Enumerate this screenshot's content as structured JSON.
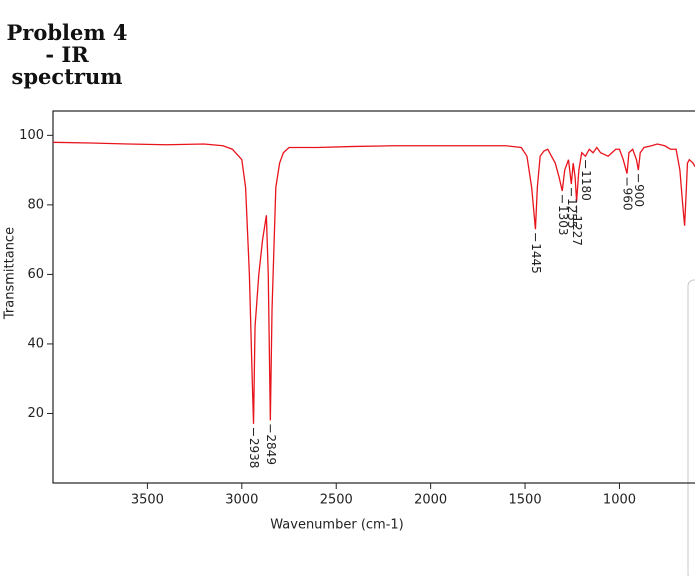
{
  "chart_data": {
    "type": "line",
    "title": "Problem 4 - IR spectrum",
    "xlabel": "Wavenumber (cm-1)",
    "ylabel": "Transmittance",
    "color": "#e8141c",
    "xlim": [
      4000,
      600
    ],
    "ylim": [
      0,
      107
    ],
    "xticks": [
      3500,
      3000,
      2500,
      2000,
      1500,
      1000
    ],
    "yticks": [
      20,
      40,
      60,
      80,
      100
    ],
    "x": [
      4000,
      3800,
      3600,
      3400,
      3200,
      3100,
      3050,
      3000,
      2980,
      2960,
      2945,
      2938,
      2930,
      2910,
      2890,
      2870,
      2860,
      2849,
      2840,
      2820,
      2800,
      2780,
      2750,
      2600,
      2400,
      2200,
      2000,
      1800,
      1600,
      1520,
      1490,
      1465,
      1445,
      1435,
      1420,
      1400,
      1380,
      1360,
      1340,
      1320,
      1303,
      1290,
      1270,
      1255,
      1245,
      1235,
      1227,
      1215,
      1200,
      1180,
      1160,
      1140,
      1120,
      1100,
      1080,
      1060,
      1040,
      1020,
      1000,
      980,
      960,
      950,
      930,
      910,
      900,
      890,
      870,
      830,
      800,
      760,
      730,
      700,
      680,
      665,
      655,
      648,
      640,
      630,
      610,
      600
    ],
    "values": [
      98,
      97.8,
      97.5,
      97.3,
      97.5,
      97,
      96,
      93,
      85,
      60,
      30,
      17,
      45,
      60,
      70,
      77,
      60,
      18,
      50,
      85,
      92,
      95,
      96.5,
      96.5,
      96.8,
      97,
      97,
      97,
      97,
      96.5,
      94,
      85,
      73,
      85,
      94,
      95.5,
      96,
      94,
      92,
      88,
      84,
      90,
      93,
      86,
      92,
      88,
      81,
      90,
      95,
      94,
      96,
      95,
      96.5,
      95,
      94.5,
      94,
      95,
      96,
      96,
      93,
      89,
      95,
      96,
      93,
      90,
      95,
      96.5,
      97,
      97.5,
      97,
      96,
      96,
      90,
      80,
      74,
      82,
      92,
      93,
      92,
      91
    ],
    "annotations": [
      {
        "x": 2938,
        "y": 17
      },
      {
        "x": 2849,
        "y": 18
      },
      {
        "x": 1445,
        "y": 73
      },
      {
        "x": 1303,
        "y": 84
      },
      {
        "x": 1255,
        "y": 86
      },
      {
        "x": 1227,
        "y": 81
      },
      {
        "x": 1180,
        "y": 94
      },
      {
        "x": 960,
        "y": 89
      },
      {
        "x": 900,
        "y": 90
      }
    ]
  }
}
